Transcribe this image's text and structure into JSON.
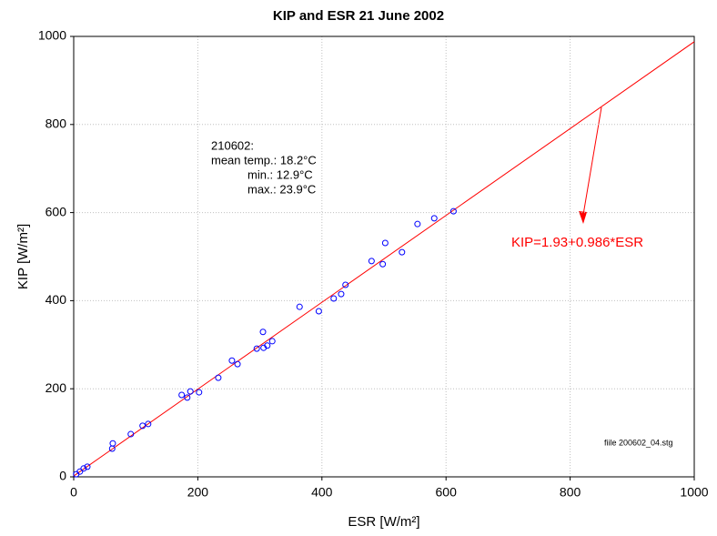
{
  "chart_data": {
    "type": "scatter",
    "title": "KIP and ESR 21 June 2002",
    "x_label": "ESR [W/m²]",
    "y_label": "KIP [W/m²]",
    "annotation": [
      "210602:",
      "mean temp.: 18.2°C",
      "min.:  12.9°C",
      "max.: 23.9°C"
    ],
    "fit_label": "KIP=1.93+0.986*ESR",
    "fit": {
      "intercept": 1.93,
      "slope": 0.986,
      "color": "#ff0000"
    },
    "file_note": "fiile 200602_04.stg",
    "xlim": [
      0,
      1000
    ],
    "ylim": [
      0,
      1000
    ],
    "xticks": [
      0,
      200,
      400,
      600,
      800,
      1000
    ],
    "yticks": [
      0,
      200,
      400,
      600,
      800,
      1000
    ],
    "grid": true,
    "series": [
      {
        "color": "#0000ff",
        "x": [
          4,
          10,
          16,
          22,
          62,
          63,
          92,
          111,
          120,
          174,
          183,
          188,
          202,
          233,
          255,
          264,
          295,
          305,
          306,
          312,
          320,
          364,
          395,
          419,
          431,
          438,
          480,
          498,
          502,
          529,
          554,
          581,
          612
        ],
        "values": [
          6,
          12,
          19,
          23,
          64,
          76,
          97,
          116,
          120,
          186,
          180,
          194,
          192,
          225,
          264,
          256,
          291,
          329,
          293,
          298,
          308,
          386,
          376,
          405,
          415,
          436,
          490,
          483,
          531,
          510,
          574,
          587,
          603
        ]
      }
    ]
  }
}
